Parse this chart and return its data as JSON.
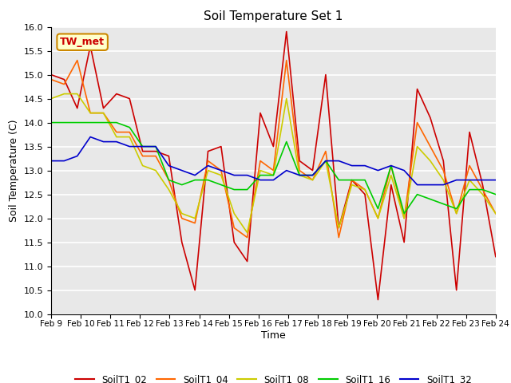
{
  "title": "Soil Temperature Set 1",
  "xlabel": "Time",
  "ylabel": "Soil Temperature (C)",
  "ylim": [
    10.0,
    16.0
  ],
  "yticks": [
    10.0,
    10.5,
    11.0,
    11.5,
    12.0,
    12.5,
    13.0,
    13.5,
    14.0,
    14.5,
    15.0,
    15.5,
    16.0
  ],
  "bg_color": "#e8e8e8",
  "annotation_text": "TW_met",
  "annotation_bg": "#ffffcc",
  "annotation_border": "#cc8800",
  "series_colors": {
    "SoilT1_02": "#cc0000",
    "SoilT1_04": "#ff6600",
    "SoilT1_08": "#cccc00",
    "SoilT1_16": "#00cc00",
    "SoilT1_32": "#0000cc"
  },
  "x_labels": [
    "Feb 9",
    "Feb 10",
    "Feb 11",
    "Feb 12",
    "Feb 13",
    "Feb 14",
    "Feb 15",
    "Feb 16",
    "Feb 17",
    "Feb 18",
    "Feb 19",
    "Feb 20",
    "Feb 21",
    "Feb 22",
    "Feb 23",
    "Feb 24"
  ],
  "SoilT1_02": [
    15.0,
    14.9,
    14.3,
    15.6,
    14.3,
    14.6,
    14.5,
    13.4,
    13.4,
    13.3,
    11.5,
    10.5,
    13.4,
    13.5,
    11.5,
    11.1,
    14.2,
    13.5,
    15.9,
    13.2,
    13.0,
    15.0,
    11.8,
    12.8,
    12.5,
    10.3,
    12.7,
    11.5,
    14.7,
    14.1,
    13.2,
    10.5,
    13.8,
    12.7,
    11.2
  ],
  "SoilT1_04": [
    14.9,
    14.8,
    15.3,
    14.2,
    14.2,
    13.8,
    13.8,
    13.3,
    13.3,
    12.8,
    12.0,
    11.9,
    13.2,
    13.0,
    11.8,
    11.6,
    13.2,
    13.0,
    15.3,
    13.0,
    12.8,
    13.4,
    11.6,
    12.8,
    12.6,
    12.0,
    13.1,
    12.0,
    14.0,
    13.5,
    13.0,
    12.1,
    13.1,
    12.6,
    12.1
  ],
  "SoilT1_08": [
    14.5,
    14.6,
    14.6,
    14.2,
    14.2,
    13.7,
    13.7,
    13.1,
    13.0,
    12.6,
    12.1,
    12.0,
    13.0,
    12.9,
    12.1,
    11.7,
    13.0,
    12.9,
    14.5,
    12.9,
    12.8,
    13.2,
    11.8,
    12.7,
    12.6,
    12.0,
    12.9,
    12.0,
    13.5,
    13.2,
    12.8,
    12.1,
    12.8,
    12.5,
    12.1
  ],
  "SoilT1_16": [
    14.0,
    14.0,
    14.0,
    14.0,
    14.0,
    14.0,
    13.9,
    13.5,
    13.5,
    12.8,
    12.7,
    12.8,
    12.8,
    12.7,
    12.6,
    12.6,
    12.9,
    12.9,
    13.6,
    12.9,
    12.9,
    13.2,
    12.8,
    12.8,
    12.8,
    12.2,
    13.1,
    12.1,
    12.5,
    12.4,
    12.3,
    12.2,
    12.6,
    12.6,
    12.5
  ],
  "SoilT1_32": [
    13.2,
    13.2,
    13.3,
    13.7,
    13.6,
    13.6,
    13.5,
    13.5,
    13.5,
    13.1,
    13.0,
    12.9,
    13.1,
    13.0,
    12.9,
    12.9,
    12.8,
    12.8,
    13.0,
    12.9,
    12.9,
    13.2,
    13.2,
    13.1,
    13.1,
    13.0,
    13.1,
    13.0,
    12.7,
    12.7,
    12.7,
    12.8,
    12.8,
    12.8,
    12.8
  ]
}
